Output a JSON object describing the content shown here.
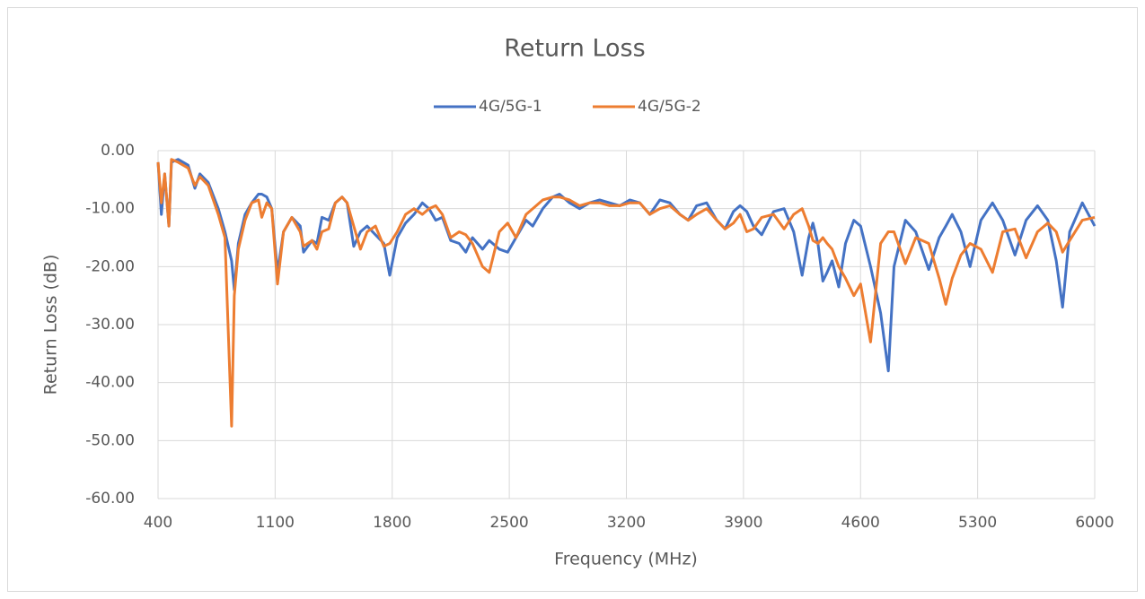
{
  "chart_data": {
    "type": "line",
    "title": "Return Loss",
    "x_label": "Frequency (MHz)",
    "y_label": "Return Loss (dB)",
    "x": [
      400,
      420,
      440,
      465,
      480,
      520,
      580,
      620,
      650,
      700,
      760,
      800,
      840,
      856,
      880,
      920,
      960,
      1000,
      1020,
      1050,
      1080,
      1114,
      1150,
      1200,
      1250,
      1270,
      1320,
      1350,
      1380,
      1420,
      1460,
      1500,
      1530,
      1570,
      1610,
      1650,
      1700,
      1750,
      1785,
      1830,
      1880,
      1930,
      1980,
      2020,
      2060,
      2100,
      2150,
      2200,
      2240,
      2280,
      2340,
      2380,
      2440,
      2490,
      2540,
      2600,
      2640,
      2700,
      2760,
      2800,
      2860,
      2920,
      2980,
      3040,
      3100,
      3160,
      3220,
      3280,
      3340,
      3400,
      3460,
      3520,
      3570,
      3620,
      3680,
      3740,
      3790,
      3840,
      3880,
      3920,
      3960,
      4009,
      4080,
      4143,
      4200,
      4251,
      4290,
      4315,
      4345,
      4375,
      4400,
      4430,
      4470,
      4510,
      4560,
      4600,
      4660,
      4720,
      4766,
      4800,
      4868,
      4930,
      5008,
      5070,
      5110,
      5148,
      5200,
      5255,
      5320,
      5389,
      5450,
      5523,
      5590,
      5658,
      5720,
      5770,
      5808,
      5850,
      5926,
      6000
    ],
    "series": [
      {
        "name": "4G/5G-1",
        "color": "#4472c4",
        "values": [
          -2,
          -11,
          -4,
          -13,
          -2,
          -1.5,
          -2.5,
          -6.5,
          -4,
          -5.5,
          -10,
          -14,
          -19,
          -24,
          -16,
          -11,
          -9,
          -7.5,
          -7.5,
          -8,
          -10,
          -21,
          -14,
          -11.5,
          -13,
          -17.5,
          -15.5,
          -16,
          -11.5,
          -12,
          -9,
          -8,
          -9,
          -16.5,
          -14,
          -13,
          -14.5,
          -16,
          -21.5,
          -15,
          -12.5,
          -11,
          -9,
          -10,
          -12,
          -11.5,
          -15.5,
          -16,
          -17.5,
          -15,
          -17,
          -15.5,
          -17,
          -17.5,
          -15,
          -12,
          -13,
          -10,
          -8,
          -7.5,
          -9,
          -10,
          -9,
          -8.5,
          -9,
          -9.5,
          -8.5,
          -9,
          -11,
          -8.5,
          -9,
          -11,
          -12,
          -9.5,
          -9,
          -12,
          -13.5,
          -10.5,
          -9.5,
          -10.5,
          -13,
          -14.5,
          -10.5,
          -10,
          -14,
          -21.5,
          -15,
          -12.5,
          -16,
          -22.5,
          -21,
          -19,
          -23.5,
          -16,
          -12,
          -13,
          -20,
          -28,
          -38,
          -20,
          -12,
          -14,
          -20.5,
          -15,
          -13,
          -11,
          -14,
          -20,
          -12,
          -9,
          -12,
          -18,
          -12,
          -9.5,
          -12,
          -19,
          -27,
          -14,
          -9,
          -13
        ]
      },
      {
        "name": "4G/5G-2",
        "color": "#ed7d31",
        "values": [
          -2,
          -9,
          -4,
          -13,
          -1.5,
          -2,
          -3,
          -6,
          -4.5,
          -6,
          -11,
          -15,
          -47.5,
          -25,
          -17,
          -12,
          -9,
          -8.5,
          -11.5,
          -9,
          -10,
          -23,
          -14,
          -11.5,
          -14,
          -16.5,
          -15.5,
          -17,
          -14,
          -13.5,
          -9,
          -8,
          -9,
          -13,
          -17,
          -14,
          -13,
          -16.5,
          -16,
          -14,
          -11,
          -10,
          -11,
          -10,
          -9.5,
          -11,
          -15,
          -14,
          -14.5,
          -16,
          -20,
          -21,
          -14,
          -12.5,
          -15,
          -11,
          -10,
          -8.5,
          -8,
          -8,
          -8.5,
          -9.5,
          -9,
          -9,
          -9.5,
          -9.5,
          -9,
          -9,
          -11,
          -10,
          -9.5,
          -11,
          -12,
          -11,
          -10,
          -12,
          -13.5,
          -12.5,
          -11,
          -14,
          -13.5,
          -11.5,
          -11,
          -13.5,
          -11,
          -10,
          -13,
          -15.5,
          -16,
          -15,
          -16,
          -17,
          -20,
          -22,
          -25,
          -23,
          -33,
          -16,
          -14,
          -14,
          -19.5,
          -15,
          -16,
          -22,
          -26.5,
          -22,
          -18,
          -16,
          -17,
          -21,
          -14,
          -13.5,
          -18.5,
          -14,
          -12.5,
          -14,
          -17.5,
          -15.5,
          -12,
          -11.5
        ]
      }
    ],
    "xlim": [
      400,
      6000
    ],
    "xticks": [
      400,
      1100,
      1800,
      2500,
      3200,
      3900,
      4600,
      5300,
      6000
    ],
    "ylim": [
      -60,
      0
    ],
    "yticks": [
      {
        "value": 0,
        "label": "0.00"
      },
      {
        "value": -10,
        "label": "-10.00"
      },
      {
        "value": -20,
        "label": "-20.00"
      },
      {
        "value": -30,
        "label": "-30.00"
      },
      {
        "value": -40,
        "label": "-40.00"
      },
      {
        "value": -50,
        "label": "-50.00"
      },
      {
        "value": -60,
        "label": "-60.00"
      }
    ],
    "grid": true,
    "legend": "top"
  }
}
